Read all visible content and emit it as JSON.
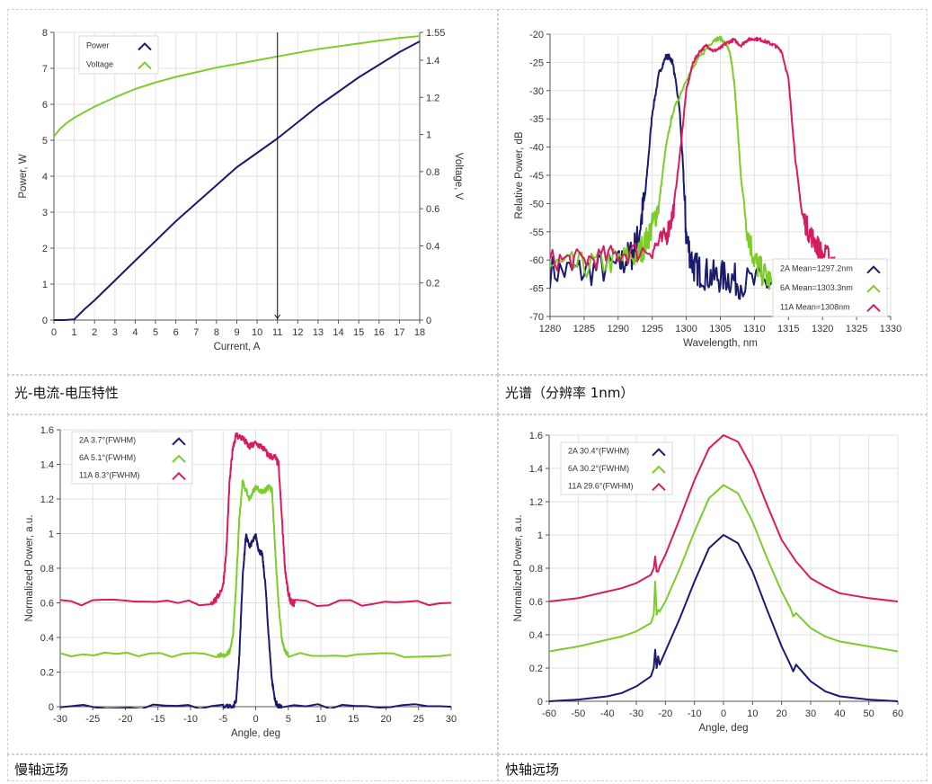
{
  "captions": {
    "tl": "光-电流-电压特性",
    "tr": "光谱（分辨率 1nm）",
    "bl": "慢轴远场",
    "br": "快轴远场"
  },
  "colors": {
    "navy": "#1a1a6e",
    "green": "#7ccc2c",
    "pink": "#d81b60",
    "grid": "#e2e2e2",
    "axis": "#555555"
  },
  "chart_data": [
    {
      "id": "liv",
      "type": "line",
      "title": "",
      "xlabel": "Current, A",
      "ylabel": "Power, W",
      "y2label": "Voltage, V",
      "xlim": [
        0,
        18
      ],
      "ylim": [
        0,
        8
      ],
      "y2lim": [
        0,
        1.55
      ],
      "xticks": [
        0,
        1,
        2,
        3,
        4,
        5,
        6,
        7,
        8,
        9,
        10,
        11,
        12,
        13,
        14,
        15,
        16,
        17,
        18
      ],
      "yticks": [
        0,
        1,
        2,
        3,
        4,
        5,
        6,
        7,
        8
      ],
      "y2ticks": [
        0,
        0.2,
        0.4,
        0.6,
        0.8,
        1,
        1.2,
        1.4,
        1.55
      ],
      "cursor_x": 11,
      "legend": [
        "Power",
        "Voltage"
      ],
      "series": [
        {
          "name": "Power",
          "axis": "y",
          "color": "navy",
          "x": [
            0,
            0.5,
            1,
            1.5,
            2,
            3,
            4,
            5,
            6,
            7,
            8,
            9,
            10,
            11,
            12,
            13,
            14,
            15,
            16,
            17,
            18
          ],
          "values": [
            0,
            0,
            0.02,
            0.3,
            0.55,
            1.1,
            1.65,
            2.2,
            2.75,
            3.25,
            3.75,
            4.25,
            4.65,
            5.05,
            5.5,
            5.95,
            6.35,
            6.75,
            7.1,
            7.45,
            7.75
          ]
        },
        {
          "name": "Voltage",
          "axis": "y2",
          "color": "green",
          "x": [
            0,
            0.3,
            0.6,
            1,
            1.5,
            2,
            3,
            4,
            5,
            6,
            7,
            8,
            9,
            10,
            11,
            12,
            13,
            14,
            15,
            16,
            17,
            18
          ],
          "values": [
            0.99,
            1.03,
            1.06,
            1.09,
            1.12,
            1.15,
            1.2,
            1.245,
            1.28,
            1.31,
            1.335,
            1.36,
            1.38,
            1.4,
            1.42,
            1.44,
            1.46,
            1.475,
            1.49,
            1.505,
            1.52,
            1.53
          ]
        }
      ]
    },
    {
      "id": "spectrum",
      "type": "line",
      "title": "",
      "xlabel": "Wavelength, nm",
      "ylabel": "Relative Power, dB",
      "xlim": [
        1280,
        1330
      ],
      "ylim": [
        -70,
        -20
      ],
      "xticks": [
        1280,
        1285,
        1290,
        1295,
        1300,
        1305,
        1310,
        1315,
        1320,
        1325,
        1330
      ],
      "yticks": [
        -70,
        -65,
        -60,
        -55,
        -50,
        -45,
        -40,
        -35,
        -30,
        -25,
        -20
      ],
      "legend": [
        "2A Mean=1297.2nm",
        "6A Mean=1303.3nm",
        "11A Mean=1308nm"
      ],
      "series": [
        {
          "name": "2A Mean=1297.2nm",
          "color": "navy",
          "noise": 3,
          "x": [
            1280,
            1285,
            1290,
            1292,
            1293,
            1294,
            1295,
            1296,
            1297,
            1297.5,
            1298,
            1299,
            1299.5,
            1300,
            1301,
            1302,
            1304,
            1306,
            1308,
            1312.5
          ],
          "values": [
            -62,
            -62,
            -61,
            -59,
            -56,
            -48,
            -34,
            -27,
            -24,
            -24,
            -25,
            -33,
            -43,
            -56,
            -61,
            -62,
            -63,
            -63,
            -64,
            -64
          ]
        },
        {
          "name": "6A Mean=1303.3nm",
          "color": "green",
          "noise": 2.5,
          "x": [
            1280,
            1285,
            1290,
            1293,
            1294,
            1295,
            1296,
            1297,
            1298,
            1300,
            1302,
            1304,
            1305,
            1306,
            1306.5,
            1307,
            1307.5,
            1308,
            1309,
            1310,
            1311,
            1312.5
          ],
          "values": [
            -61,
            -61,
            -60,
            -59,
            -57,
            -54,
            -50,
            -40,
            -34,
            -28,
            -24,
            -21,
            -20.7,
            -22,
            -24,
            -28,
            -36,
            -45,
            -55,
            -60,
            -62,
            -64
          ]
        },
        {
          "name": "11A Mean=1308nm",
          "color": "pink",
          "noise": 2,
          "x": [
            1280,
            1285,
            1290,
            1295,
            1297,
            1298,
            1299,
            1300,
            1301,
            1302,
            1303,
            1304,
            1305,
            1306,
            1307,
            1308,
            1309,
            1310,
            1311,
            1312,
            1313,
            1314,
            1315,
            1316,
            1317,
            1318,
            1319,
            1320,
            1322
          ],
          "values": [
            -60,
            -60,
            -59,
            -58,
            -56,
            -52,
            -42,
            -30,
            -25,
            -23,
            -22,
            -23,
            -22.5,
            -21.5,
            -21,
            -22,
            -21,
            -20.8,
            -21,
            -21.5,
            -22,
            -23,
            -28,
            -42,
            -52,
            -55,
            -57,
            -59,
            -60
          ]
        }
      ]
    },
    {
      "id": "slow_axis",
      "type": "line",
      "title": "",
      "xlabel": "Angle, deg",
      "ylabel": "Normalized Power, a.u.",
      "xlim": [
        -30,
        30
      ],
      "ylim": [
        0,
        1.6
      ],
      "xticks": [
        -30,
        -25,
        -20,
        -15,
        -10,
        -5,
        0,
        5,
        10,
        15,
        20,
        25,
        30
      ],
      "yticks": [
        0,
        0.2,
        0.4,
        0.6,
        0.8,
        1,
        1.2,
        1.4,
        1.6
      ],
      "legend": [
        "2A 3.7°(FWHM)",
        "6A 5.1°(FWHM)",
        "11A 8.3°(FWHM)"
      ],
      "series": [
        {
          "name": "2A 3.7°(FWHM)",
          "color": "navy",
          "noise": 0.015,
          "x": [
            -30,
            -5,
            -3.5,
            -3,
            -2.5,
            -2,
            -1.5,
            -1,
            -0.5,
            0,
            0.5,
            1,
            1.5,
            2,
            2.5,
            3,
            3.5,
            4,
            30
          ],
          "values": [
            0,
            0,
            0,
            0.03,
            0.3,
            0.75,
            0.99,
            0.93,
            0.95,
            0.99,
            0.9,
            0.88,
            0.7,
            0.4,
            0.15,
            0.03,
            0,
            0,
            0
          ]
        },
        {
          "name": "6A 5.1°(FWHM)",
          "color": "green",
          "noise": 0.015,
          "x": [
            -30,
            -6,
            -4.5,
            -4,
            -3.5,
            -3,
            -2.5,
            -2,
            -1,
            0,
            1,
            1.5,
            2,
            2.5,
            3,
            3.5,
            4,
            4.5,
            5,
            30
          ],
          "values": [
            0.3,
            0.3,
            0.3,
            0.32,
            0.4,
            0.7,
            1.1,
            1.3,
            1.2,
            1.27,
            1.24,
            1.25,
            1.27,
            1.25,
            0.9,
            0.6,
            0.4,
            0.32,
            0.3,
            0.3
          ]
        },
        {
          "name": "11A 8.3°(FWHM)",
          "color": "pink",
          "noise": 0.02,
          "x": [
            -30,
            -7,
            -6,
            -5,
            -4.5,
            -4,
            -3.5,
            -3,
            -2,
            -1,
            0,
            1,
            2,
            3,
            3.5,
            4,
            4.5,
            5,
            5.5,
            6,
            30
          ],
          "values": [
            0.6,
            0.6,
            0.62,
            0.7,
            0.9,
            1.3,
            1.5,
            1.57,
            1.55,
            1.5,
            1.52,
            1.5,
            1.45,
            1.44,
            1.4,
            1.1,
            0.8,
            0.65,
            0.6,
            0.6,
            0.6
          ]
        }
      ]
    },
    {
      "id": "fast_axis",
      "type": "line",
      "title": "",
      "xlabel": "Angle, deg",
      "ylabel": "Normalized Power, a.u.",
      "xlim": [
        -60,
        60
      ],
      "ylim": [
        0,
        1.6
      ],
      "xticks": [
        -60,
        -50,
        -40,
        -30,
        -20,
        -10,
        0,
        10,
        20,
        30,
        40,
        50,
        60
      ],
      "yticks": [
        0,
        0.2,
        0.4,
        0.6,
        0.8,
        1,
        1.2,
        1.4,
        1.6
      ],
      "legend": [
        "2A 30.4°(FWHM)",
        "6A 30.2°(FWHM)",
        "11A 29.6°(FWHM)"
      ],
      "series": [
        {
          "name": "2A 30.4°(FWHM)",
          "color": "navy",
          "x": [
            -60,
            -50,
            -40,
            -35,
            -30,
            -25,
            -24,
            -23.5,
            -23,
            -22.5,
            -22,
            -20,
            -15,
            -10,
            -5,
            0,
            5,
            10,
            15,
            20,
            23,
            24,
            25,
            30,
            35,
            40,
            50,
            60
          ],
          "values": [
            0,
            0.01,
            0.03,
            0.05,
            0.09,
            0.15,
            0.2,
            0.31,
            0.2,
            0.27,
            0.22,
            0.3,
            0.5,
            0.72,
            0.92,
            1.0,
            0.95,
            0.78,
            0.55,
            0.33,
            0.22,
            0.18,
            0.22,
            0.12,
            0.06,
            0.03,
            0.01,
            0
          ]
        },
        {
          "name": "6A 30.2°(FWHM)",
          "color": "green",
          "x": [
            -60,
            -50,
            -40,
            -35,
            -30,
            -25,
            -24,
            -23.5,
            -23,
            -22.5,
            -22,
            -20,
            -15,
            -10,
            -5,
            0,
            5,
            10,
            15,
            20,
            23,
            24,
            25,
            30,
            35,
            40,
            50,
            60
          ],
          "values": [
            0.3,
            0.33,
            0.37,
            0.39,
            0.42,
            0.47,
            0.52,
            0.72,
            0.52,
            0.55,
            0.54,
            0.6,
            0.8,
            1.02,
            1.22,
            1.3,
            1.25,
            1.08,
            0.86,
            0.66,
            0.56,
            0.51,
            0.53,
            0.44,
            0.39,
            0.36,
            0.33,
            0.3
          ]
        },
        {
          "name": "11A 29.6°(FWHM)",
          "color": "pink",
          "x": [
            -60,
            -50,
            -40,
            -35,
            -30,
            -25,
            -24,
            -23.5,
            -23,
            -22.5,
            -22,
            -20,
            -15,
            -10,
            -5,
            0,
            5,
            10,
            15,
            20,
            25,
            30,
            35,
            40,
            50,
            60
          ],
          "values": [
            0.6,
            0.62,
            0.66,
            0.68,
            0.71,
            0.76,
            0.8,
            0.87,
            0.78,
            0.78,
            0.81,
            0.88,
            1.1,
            1.33,
            1.52,
            1.6,
            1.56,
            1.4,
            1.18,
            0.97,
            0.84,
            0.74,
            0.69,
            0.65,
            0.62,
            0.6
          ]
        }
      ]
    }
  ]
}
